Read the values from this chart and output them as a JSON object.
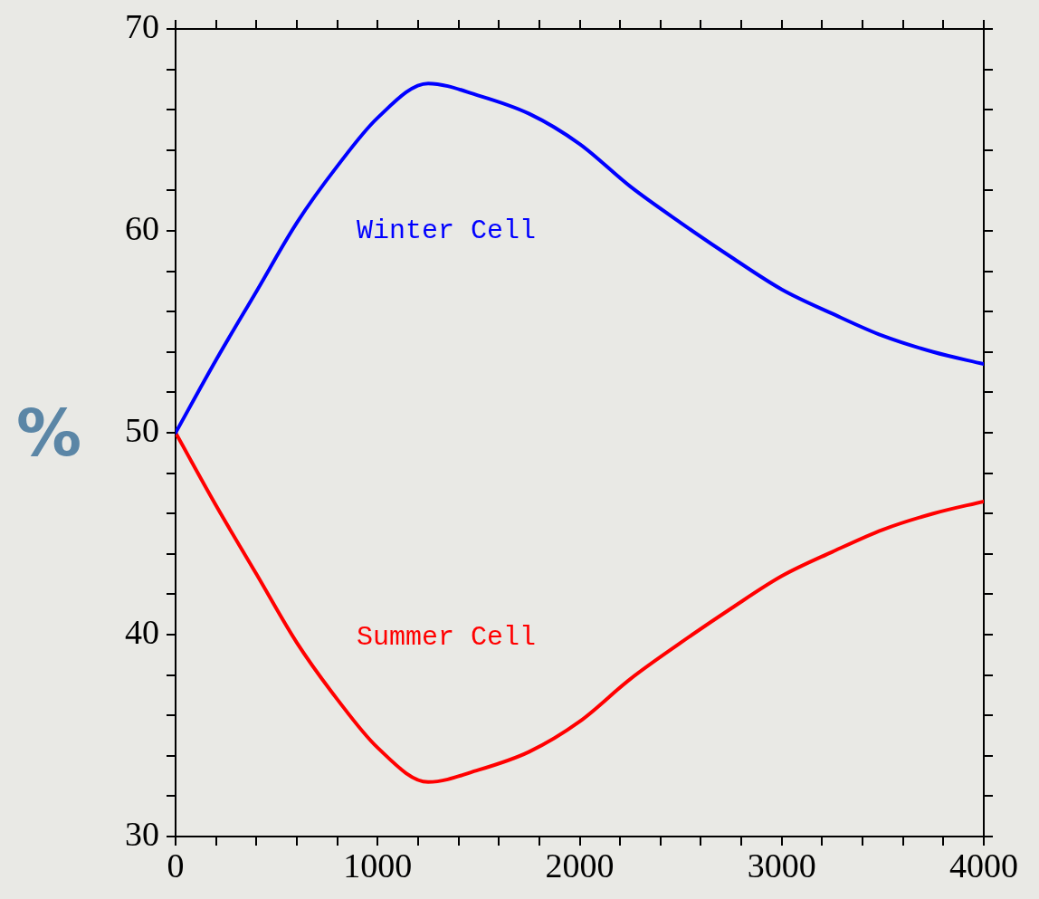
{
  "chart_data": {
    "type": "line",
    "ylabel": "%",
    "x": [
      0,
      200,
      400,
      600,
      800,
      1000,
      1250,
      1500,
      1750,
      2000,
      2250,
      2500,
      2750,
      3000,
      3250,
      3500,
      3750,
      4000
    ],
    "series": [
      {
        "name": "Winter Cell",
        "color": "#0000ff",
        "values": [
          50,
          53.6,
          57.0,
          60.4,
          63.2,
          65.6,
          67.3,
          66.7,
          65.8,
          64.3,
          62.2,
          60.4,
          58.7,
          57.1,
          55.9,
          54.8,
          54.0,
          53.4
        ]
      },
      {
        "name": "Summer Cell",
        "color": "#ff0000",
        "values": [
          50,
          46.4,
          43.0,
          39.6,
          36.8,
          34.4,
          32.7,
          33.3,
          34.2,
          35.7,
          37.8,
          39.6,
          41.3,
          42.9,
          44.1,
          45.2,
          46.0,
          46.6
        ]
      }
    ],
    "xlim": [
      0,
      4000
    ],
    "ylim": [
      30,
      70
    ],
    "xticks": [
      0,
      {
        "value": 200,
        "label": null
      },
      {
        "value": 400,
        "label": null
      },
      {
        "value": 600,
        "label": null
      },
      {
        "value": 800,
        "label": null
      },
      1000,
      {
        "value": 1200,
        "label": null
      },
      {
        "value": 1400,
        "label": null
      },
      {
        "value": 1600,
        "label": null
      },
      {
        "value": 1800,
        "label": null
      },
      2000,
      {
        "value": 2200,
        "label": null
      },
      {
        "value": 2400,
        "label": null
      },
      {
        "value": 2600,
        "label": null
      },
      {
        "value": 2800,
        "label": null
      },
      3000,
      {
        "value": 3200,
        "label": null
      },
      {
        "value": 3400,
        "label": null
      },
      {
        "value": 3600,
        "label": null
      },
      {
        "value": 3800,
        "label": null
      },
      4000
    ],
    "yticks": [
      30,
      {
        "value": 32,
        "label": null
      },
      {
        "value": 34,
        "label": null
      },
      {
        "value": 36,
        "label": null
      },
      {
        "value": 38,
        "label": null
      },
      40,
      {
        "value": 42,
        "label": null
      },
      {
        "value": 44,
        "label": null
      },
      {
        "value": 46,
        "label": null
      },
      {
        "value": 48,
        "label": null
      },
      50,
      {
        "value": 52,
        "label": null
      },
      {
        "value": 54,
        "label": null
      },
      {
        "value": 56,
        "label": null
      },
      {
        "value": 58,
        "label": null
      },
      60,
      {
        "value": 62,
        "label": null
      },
      {
        "value": 64,
        "label": null
      },
      {
        "value": 66,
        "label": null
      },
      {
        "value": 68,
        "label": null
      },
      70
    ],
    "grid": false,
    "legend": false,
    "marker": "none",
    "line_style": "solid"
  }
}
